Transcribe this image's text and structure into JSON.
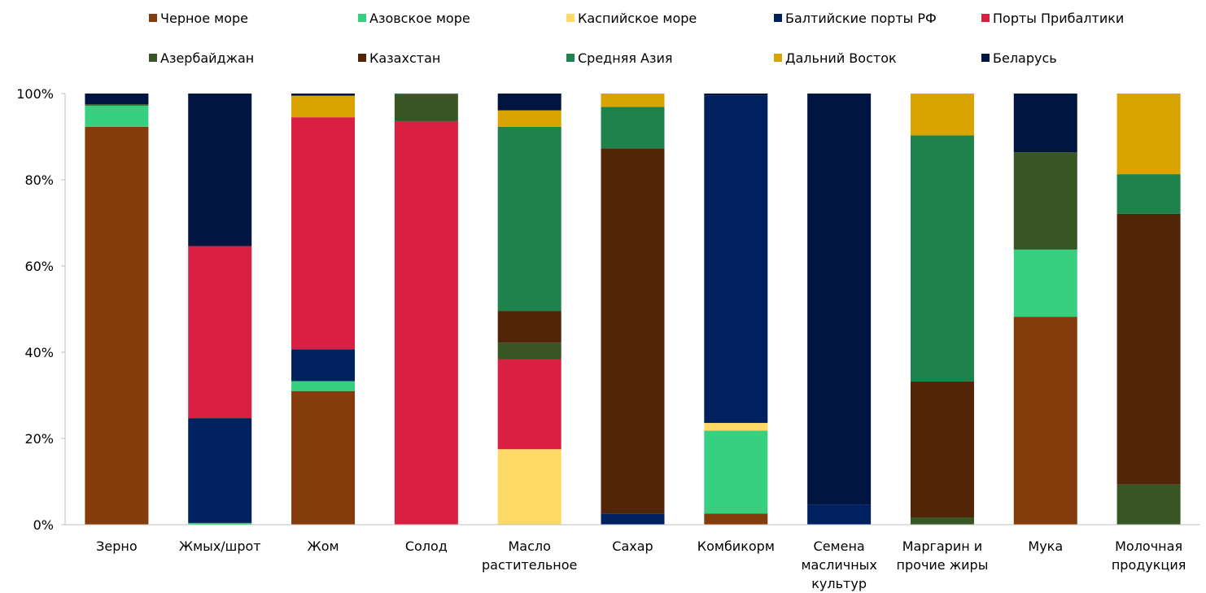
{
  "chart_data": {
    "type": "bar",
    "stacked": true,
    "percent": true,
    "title": "",
    "xlabel": "",
    "ylabel": "",
    "ylim": [
      0,
      100
    ],
    "y_ticks": [
      "0%",
      "20%",
      "40%",
      "60%",
      "80%",
      "100%"
    ],
    "y_tick_values": [
      0,
      20,
      40,
      60,
      80,
      100
    ],
    "grid": false,
    "legend_position": "top",
    "categories": [
      [
        "Зерно"
      ],
      [
        "Жмых/шрот"
      ],
      [
        "Жом"
      ],
      [
        "Солод"
      ],
      [
        "Масло",
        "растительное"
      ],
      [
        "Сахар"
      ],
      [
        "Комбикорм"
      ],
      [
        "Семена",
        "масличных",
        "культур"
      ],
      [
        "Маргарин и",
        "прочие жиры"
      ],
      [
        "Мука"
      ],
      [
        "Молочная",
        "продукция"
      ]
    ],
    "series": [
      {
        "name": "Черное море",
        "color": "#843C0C",
        "values": [
          92.3,
          0,
          31.0,
          0,
          0,
          0,
          2.6,
          0,
          0,
          48.2,
          0
        ]
      },
      {
        "name": "Азовское море",
        "color": "#37D081",
        "values": [
          4.9,
          0.4,
          2.3,
          0,
          0,
          0,
          19.2,
          0,
          0,
          15.6,
          0
        ]
      },
      {
        "name": "Каспийское море",
        "color": "#FFD966",
        "values": [
          0,
          0,
          0,
          0,
          17.5,
          0,
          1.8,
          0,
          0,
          0,
          0
        ]
      },
      {
        "name": "Балтийские порты РФ",
        "color": "#002060",
        "values": [
          0,
          24.3,
          7.4,
          0,
          0,
          2.6,
          75.9,
          4.7,
          0,
          0,
          0
        ]
      },
      {
        "name": "Порты Прибалтики",
        "color": "#D92042",
        "values": [
          0,
          39.9,
          53.8,
          93.6,
          20.9,
          0,
          0,
          0,
          0,
          0,
          0
        ]
      },
      {
        "name": "Азербайджан",
        "color": "#375623",
        "values": [
          0.3,
          0,
          0,
          6.2,
          3.8,
          0,
          0,
          0,
          1.7,
          22.6,
          9.3
        ]
      },
      {
        "name": "Казахстан",
        "color": "#522508",
        "values": [
          0,
          0,
          0,
          0,
          7.4,
          84.7,
          0,
          0,
          31.5,
          0,
          62.8
        ]
      },
      {
        "name": "Средняя Азия",
        "color": "#1E824C",
        "values": [
          0,
          0,
          0,
          0.2,
          42.7,
          9.6,
          0,
          0,
          57.1,
          0,
          9.2
        ]
      },
      {
        "name": "Дальний Восток",
        "color": "#D9A400",
        "values": [
          0,
          0,
          5.0,
          0,
          3.8,
          3.1,
          0,
          0,
          9.7,
          0,
          18.7
        ]
      },
      {
        "name": "Беларусь",
        "color": "#001540",
        "values": [
          2.5,
          35.4,
          0.5,
          0,
          3.9,
          0,
          0.5,
          95.3,
          0,
          13.6,
          0
        ]
      }
    ]
  }
}
